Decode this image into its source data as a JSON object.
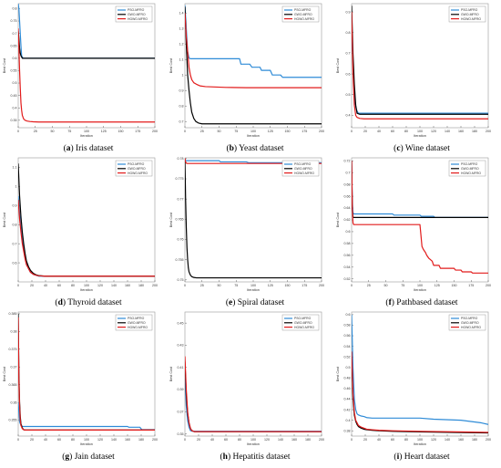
{
  "legend_labels": [
    "PSO-MFRO",
    "GWO-MFRO",
    "HGWO-MFRO"
  ],
  "colors": {
    "PSO-MFRO": "#2e8bd7",
    "GWO-MFRO": "#000000",
    "HGWO-MFRO": "#e21b1b"
  },
  "chart_data": [
    {
      "label": "a",
      "title": "Iris dataset",
      "type": "line",
      "xlabel": "Iteration",
      "ylabel": "Best Cost",
      "xlim": [
        0,
        200
      ],
      "ylim": [
        0.32,
        0.82
      ],
      "xticks": [
        0,
        25,
        50,
        75,
        100,
        125,
        150,
        175,
        200
      ],
      "yticks": [
        0.35,
        0.4,
        0.45,
        0.5,
        0.55,
        0.6,
        0.65,
        0.7,
        0.75,
        0.8
      ],
      "legend": "top-right",
      "series": [
        {
          "name": "PSO-MFRO",
          "x": [
            0,
            1,
            2,
            3,
            4,
            5,
            7,
            200
          ],
          "y": [
            0.82,
            0.8,
            0.75,
            0.7,
            0.65,
            0.61,
            0.6,
            0.6
          ]
        },
        {
          "name": "GWO-MFRO",
          "x": [
            0,
            1,
            2,
            3,
            4,
            6,
            8,
            200
          ],
          "y": [
            0.71,
            0.68,
            0.64,
            0.62,
            0.61,
            0.6,
            0.6,
            0.6
          ]
        },
        {
          "name": "HGWO-MFRO",
          "x": [
            0,
            1,
            2,
            3,
            4,
            5,
            6,
            8,
            10,
            13,
            17,
            22,
            30,
            40,
            200
          ],
          "y": [
            0.72,
            0.64,
            0.55,
            0.48,
            0.42,
            0.39,
            0.37,
            0.355,
            0.35,
            0.347,
            0.345,
            0.344,
            0.343,
            0.343,
            0.343
          ]
        }
      ]
    },
    {
      "label": "b",
      "title": "Yeast dataset",
      "type": "line",
      "xlabel": "Iteration",
      "ylabel": "Best Cost",
      "xlim": [
        0,
        200
      ],
      "ylim": [
        0.66,
        1.46
      ],
      "xticks": [
        0,
        25,
        50,
        75,
        100,
        125,
        150,
        175,
        200
      ],
      "yticks": [
        0.7,
        0.8,
        0.9,
        1.0,
        1.1,
        1.2,
        1.3,
        1.4
      ],
      "legend": "top-right",
      "series": [
        {
          "name": "PSO-MFRO",
          "x": [
            0,
            2,
            4,
            6,
            8,
            80,
            82,
            95,
            98,
            110,
            112,
            125,
            128,
            140,
            143,
            200
          ],
          "y": [
            1.45,
            1.3,
            1.15,
            1.11,
            1.105,
            1.105,
            1.07,
            1.07,
            1.05,
            1.05,
            1.03,
            1.03,
            1.0,
            1.0,
            0.985,
            0.985
          ]
        },
        {
          "name": "GWO-MFRO",
          "x": [
            0,
            2,
            4,
            6,
            8,
            10,
            13,
            16,
            20,
            25,
            30,
            200
          ],
          "y": [
            1.44,
            1.2,
            1.0,
            0.9,
            0.82,
            0.76,
            0.72,
            0.7,
            0.69,
            0.685,
            0.685,
            0.685
          ]
        },
        {
          "name": "HGWO-MFRO",
          "x": [
            0,
            2,
            4,
            6,
            8,
            10,
            13,
            17,
            22,
            30,
            60,
            90,
            200
          ],
          "y": [
            1.4,
            1.25,
            1.15,
            1.05,
            1.0,
            0.97,
            0.95,
            0.94,
            0.93,
            0.925,
            0.92,
            0.918,
            0.918
          ]
        }
      ]
    },
    {
      "label": "c",
      "title": "Wine dataset",
      "type": "line",
      "xlabel": "Iteration",
      "ylabel": "Best Cost",
      "xlim": [
        0,
        200
      ],
      "ylim": [
        0.34,
        0.94
      ],
      "xticks": [
        0,
        20,
        40,
        60,
        80,
        100,
        120,
        140,
        160,
        180,
        200
      ],
      "yticks": [
        0.4,
        0.5,
        0.6,
        0.7,
        0.8,
        0.9
      ],
      "legend": "top-right",
      "series": [
        {
          "name": "PSO-MFRO",
          "x": [
            0,
            2,
            4,
            6,
            8,
            10,
            200
          ],
          "y": [
            0.8,
            0.65,
            0.5,
            0.44,
            0.42,
            0.41,
            0.41
          ]
        },
        {
          "name": "GWO-MFRO",
          "x": [
            0,
            2,
            4,
            6,
            8,
            12,
            200
          ],
          "y": [
            0.93,
            0.7,
            0.55,
            0.45,
            0.41,
            0.405,
            0.405
          ]
        },
        {
          "name": "HGWO-MFRO",
          "x": [
            0,
            2,
            4,
            6,
            8,
            12,
            18,
            200
          ],
          "y": [
            0.9,
            0.6,
            0.45,
            0.4,
            0.39,
            0.385,
            0.383,
            0.383
          ]
        }
      ]
    },
    {
      "label": "d",
      "title": "Thyroid dataset",
      "type": "line",
      "xlabel": "Iteration",
      "ylabel": "Best Cost",
      "xlim": [
        0,
        200
      ],
      "ylim": [
        0.5,
        1.15
      ],
      "xticks": [
        0,
        20,
        40,
        60,
        80,
        100,
        120,
        140,
        160,
        180,
        200
      ],
      "yticks": [
        0.6,
        0.7,
        0.8,
        0.9,
        1.0,
        1.1
      ],
      "legend": "top-right",
      "series": [
        {
          "name": "PSO-MFRO",
          "x": [
            0,
            2,
            4,
            6,
            8,
            10,
            12,
            15,
            18,
            22,
            26,
            30,
            40,
            200
          ],
          "y": [
            0.95,
            0.86,
            0.78,
            0.72,
            0.67,
            0.63,
            0.6,
            0.57,
            0.55,
            0.54,
            0.535,
            0.53,
            0.53,
            0.53
          ]
        },
        {
          "name": "GWO-MFRO",
          "x": [
            0,
            2,
            4,
            6,
            8,
            10,
            12,
            15,
            18,
            22,
            26,
            30,
            40,
            200
          ],
          "y": [
            1.12,
            0.95,
            0.84,
            0.76,
            0.7,
            0.65,
            0.61,
            0.58,
            0.56,
            0.545,
            0.537,
            0.533,
            0.53,
            0.53
          ]
        },
        {
          "name": "HGWO-MFRO",
          "x": [
            0,
            2,
            4,
            6,
            8,
            10,
            12,
            15,
            18,
            22,
            26,
            30,
            40,
            200
          ],
          "y": [
            0.93,
            0.83,
            0.76,
            0.7,
            0.66,
            0.62,
            0.59,
            0.57,
            0.55,
            0.54,
            0.535,
            0.532,
            0.53,
            0.53
          ]
        }
      ]
    },
    {
      "label": "e",
      "title": "Spiral dataset",
      "type": "line",
      "xlabel": "Iteration",
      "ylabel": "Best Cost",
      "xlim": [
        0,
        200
      ],
      "ylim": [
        0.7495,
        0.7802
      ],
      "xticks": [
        0,
        25,
        50,
        75,
        100,
        125,
        150,
        175,
        200
      ],
      "yticks": [
        0.75,
        0.755,
        0.76,
        0.765,
        0.77,
        0.775,
        0.78
      ],
      "legend": "top-right",
      "series": [
        {
          "name": "PSO-MFRO",
          "x": [
            0,
            50,
            52,
            90,
            93,
            200
          ],
          "y": [
            0.7795,
            0.7795,
            0.7792,
            0.7792,
            0.779,
            0.779
          ]
        },
        {
          "name": "GWO-MFRO",
          "x": [
            0,
            1,
            2,
            3,
            4,
            5,
            6,
            8,
            10,
            13,
            17,
            22,
            200
          ],
          "y": [
            0.78,
            0.77,
            0.763,
            0.758,
            0.755,
            0.753,
            0.752,
            0.7512,
            0.7508,
            0.7506,
            0.7505,
            0.7505,
            0.7505
          ]
        },
        {
          "name": "HGWO-MFRO",
          "x": [
            0,
            1,
            2,
            3,
            5,
            200
          ],
          "y": [
            0.7801,
            0.7792,
            0.7789,
            0.7788,
            0.7788,
            0.7788
          ]
        }
      ]
    },
    {
      "label": "f",
      "title": "Pathbased dataset",
      "type": "line",
      "xlabel": "Iteration",
      "ylabel": "Best Cost",
      "xlim": [
        0,
        200
      ],
      "ylim": [
        0.515,
        0.725
      ],
      "xticks": [
        0,
        25,
        50,
        75,
        100,
        125,
        150,
        175,
        200
      ],
      "yticks": [
        0.52,
        0.54,
        0.56,
        0.58,
        0.6,
        0.62,
        0.64,
        0.66,
        0.68,
        0.7,
        0.72
      ],
      "legend": "top-right",
      "series": [
        {
          "name": "PSO-MFRO",
          "x": [
            0,
            1,
            2,
            3,
            4,
            60,
            62,
            100,
            102,
            120,
            122,
            200
          ],
          "y": [
            0.72,
            0.65,
            0.632,
            0.63,
            0.63,
            0.63,
            0.628,
            0.628,
            0.626,
            0.626,
            0.624,
            0.624
          ]
        },
        {
          "name": "GWO-MFRO",
          "x": [
            0,
            1,
            2,
            3,
            4,
            200
          ],
          "y": [
            0.72,
            0.64,
            0.625,
            0.624,
            0.624,
            0.624
          ]
        },
        {
          "name": "HGWO-MFRO",
          "x": [
            0,
            1,
            2,
            3,
            4,
            100,
            101,
            103,
            105,
            108,
            110,
            113,
            118,
            120,
            128,
            130,
            150,
            152,
            160,
            162,
            175,
            177,
            200
          ],
          "y": [
            0.72,
            0.64,
            0.615,
            0.612,
            0.612,
            0.612,
            0.6,
            0.575,
            0.57,
            0.565,
            0.56,
            0.555,
            0.55,
            0.543,
            0.543,
            0.538,
            0.538,
            0.535,
            0.535,
            0.532,
            0.532,
            0.53,
            0.53
          ]
        }
      ]
    },
    {
      "label": "g",
      "title": "Jain dataset",
      "type": "line",
      "xlabel": "Iteration",
      "ylabel": "Best Cost",
      "xlim": [
        0,
        200
      ],
      "ylim": [
        0.3505,
        0.3855
      ],
      "xticks": [
        0,
        20,
        40,
        60,
        80,
        100,
        120,
        140,
        160,
        180,
        200
      ],
      "yticks": [
        0.355,
        0.36,
        0.365,
        0.37,
        0.375,
        0.38,
        0.385
      ],
      "legend": "top-right",
      "series": [
        {
          "name": "PSO-MFRO",
          "x": [
            0,
            2,
            4,
            6,
            8,
            160,
            162,
            178,
            181,
            200
          ],
          "y": [
            0.36,
            0.3545,
            0.3535,
            0.3532,
            0.3532,
            0.3532,
            0.353,
            0.353,
            0.3523,
            0.3523
          ]
        },
        {
          "name": "GWO-MFRO",
          "x": [
            0,
            1,
            2,
            3,
            4,
            6,
            8,
            10,
            200
          ],
          "y": [
            0.385,
            0.368,
            0.36,
            0.356,
            0.354,
            0.3528,
            0.3523,
            0.3522,
            0.3522
          ]
        },
        {
          "name": "HGWO-MFRO",
          "x": [
            0,
            1,
            2,
            3,
            4,
            6,
            8,
            10,
            200
          ],
          "y": [
            0.384,
            0.366,
            0.359,
            0.355,
            0.3535,
            0.3526,
            0.3523,
            0.3522,
            0.3522
          ]
        }
      ]
    },
    {
      "label": "h",
      "title": "Hepatitis dataset",
      "type": "line",
      "xlabel": "Iteration",
      "ylabel": "Best Cost",
      "xlim": [
        0,
        200
      ],
      "ylim": [
        0.348,
        0.46
      ],
      "xticks": [
        0,
        20,
        40,
        60,
        80,
        100,
        120,
        140,
        160,
        180,
        200
      ],
      "yticks": [
        0.35,
        0.37,
        0.39,
        0.41,
        0.43,
        0.45
      ],
      "legend": "top-right",
      "series": [
        {
          "name": "PSO-MFRO",
          "x": [
            0,
            2,
            4,
            6,
            8,
            10,
            12,
            200
          ],
          "y": [
            0.4,
            0.375,
            0.362,
            0.356,
            0.353,
            0.3525,
            0.3523,
            0.3523
          ]
        },
        {
          "name": "GWO-MFRO",
          "x": [
            0,
            2,
            4,
            6,
            8,
            10,
            14,
            200
          ],
          "y": [
            0.415,
            0.385,
            0.368,
            0.36,
            0.355,
            0.353,
            0.352,
            0.352
          ]
        },
        {
          "name": "HGWO-MFRO",
          "x": [
            0,
            2,
            4,
            6,
            8,
            10,
            14,
            200
          ],
          "y": [
            0.42,
            0.39,
            0.37,
            0.36,
            0.355,
            0.353,
            0.352,
            0.352
          ]
        }
      ]
    },
    {
      "label": "i",
      "title": "Heart dataset",
      "type": "line",
      "xlabel": "Iteration",
      "ylabel": "Best Cost",
      "xlim": [
        0,
        200
      ],
      "ylim": [
        0.37,
        0.605
      ],
      "xticks": [
        0,
        20,
        40,
        60,
        80,
        100,
        120,
        140,
        160,
        180,
        200
      ],
      "yticks": [
        0.38,
        0.4,
        0.42,
        0.44,
        0.46,
        0.48,
        0.5,
        0.52,
        0.54,
        0.56,
        0.58,
        0.6
      ],
      "legend": "top-right",
      "series": [
        {
          "name": "PSO-MFRO",
          "x": [
            0,
            2,
            4,
            6,
            8,
            10,
            14,
            18,
            22,
            30,
            100,
            120,
            160,
            190,
            200
          ],
          "y": [
            0.6,
            0.5,
            0.44,
            0.42,
            0.412,
            0.41,
            0.408,
            0.407,
            0.405,
            0.404,
            0.404,
            0.402,
            0.4,
            0.395,
            0.392
          ]
        },
        {
          "name": "GWO-MFRO",
          "x": [
            0,
            2,
            4,
            6,
            8,
            10,
            14,
            18,
            22,
            30,
            40,
            60,
            100,
            200
          ],
          "y": [
            0.52,
            0.44,
            0.41,
            0.398,
            0.392,
            0.388,
            0.385,
            0.383,
            0.382,
            0.381,
            0.38,
            0.379,
            0.378,
            0.376
          ]
        },
        {
          "name": "HGWO-MFRO",
          "x": [
            0,
            2,
            4,
            6,
            8,
            10,
            14,
            18,
            22,
            30,
            40,
            60,
            100,
            200
          ],
          "y": [
            0.53,
            0.45,
            0.415,
            0.4,
            0.395,
            0.39,
            0.387,
            0.385,
            0.383,
            0.382,
            0.381,
            0.38,
            0.379,
            0.377
          ]
        }
      ]
    }
  ]
}
